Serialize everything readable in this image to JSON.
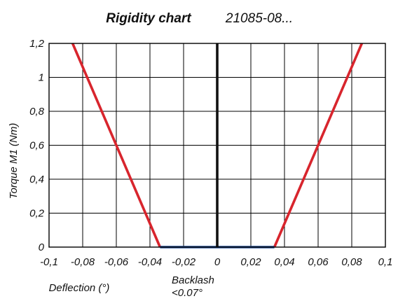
{
  "chart_data": {
    "type": "line",
    "title": "Rigidity chart",
    "subtitle": "21085-08...",
    "xlabel": "Deflection (°)",
    "ylabel": "Torque M1 (Nm)",
    "xlim": [
      -0.1,
      0.1
    ],
    "ylim": [
      0,
      1.2
    ],
    "x_ticks": [
      -0.1,
      -0.08,
      -0.06,
      -0.04,
      -0.02,
      0,
      0.02,
      0.04,
      0.06,
      0.08,
      0.1
    ],
    "x_tick_labels": [
      "-0,1",
      "-0,08",
      "-0,06",
      "-0,04",
      "-0,02",
      "0",
      "0,02",
      "0,04",
      "0,06",
      "0,08",
      "0,1"
    ],
    "y_ticks": [
      0,
      0.2,
      0.4,
      0.6,
      0.8,
      1,
      1.2
    ],
    "y_tick_labels": [
      "0",
      "0,2",
      "0,4",
      "0,6",
      "0,8",
      "1",
      "1,2"
    ],
    "grid": true,
    "annotation": {
      "line1": "Backlash",
      "line2": "<0.07°"
    },
    "series": [
      {
        "color": "#d8252d",
        "points": [
          [
            -0.086,
            1.2
          ],
          [
            -0.034,
            0
          ]
        ]
      },
      {
        "color": "#d8252d",
        "points": [
          [
            0.034,
            0
          ],
          [
            0.086,
            1.2
          ]
        ]
      },
      {
        "color": "#1f4a93",
        "points": [
          [
            -0.034,
            0
          ],
          [
            0.034,
            0
          ]
        ]
      },
      {
        "color": "#111111",
        "points": [
          [
            0,
            0
          ],
          [
            0,
            1.2
          ]
        ]
      }
    ]
  }
}
